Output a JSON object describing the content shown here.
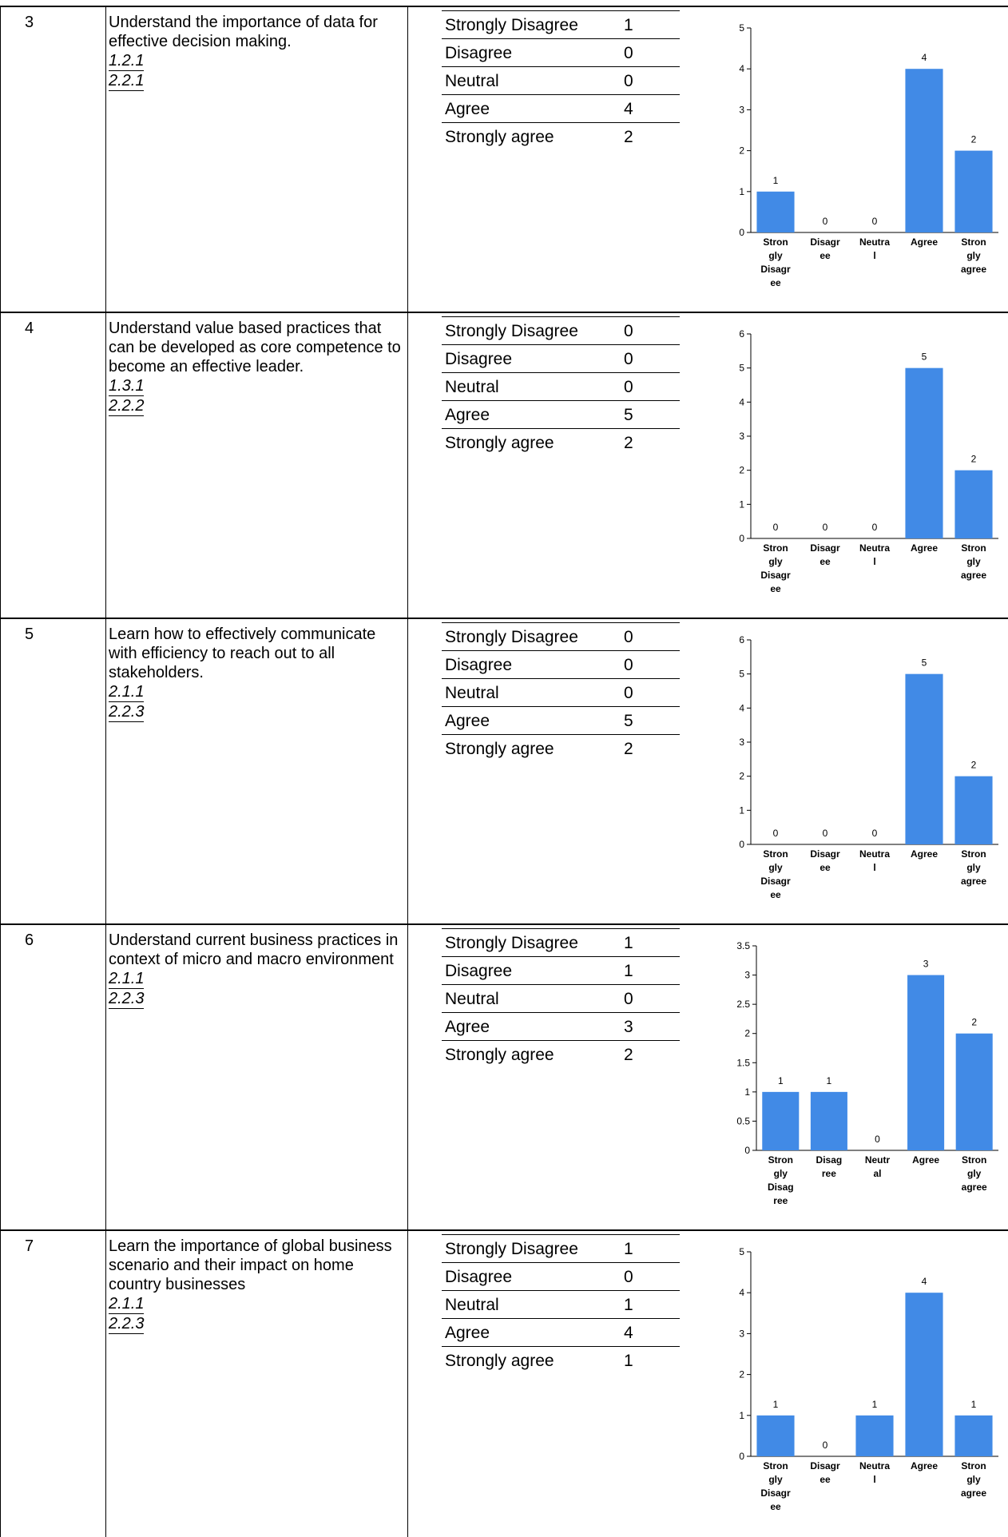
{
  "rows": [
    {
      "number": "3",
      "description": "Understand the importance of data for effective decision making.",
      "codes": [
        "1.2.1",
        "2.2.1"
      ],
      "responses": [
        {
          "label": "Strongly Disagree",
          "count": "1"
        },
        {
          "label": "Disagree",
          "count": "0"
        },
        {
          "label": "Neutral",
          "count": "0"
        },
        {
          "label": "Agree",
          "count": "4"
        },
        {
          "label": "Strongly agree",
          "count": "2"
        }
      ]
    },
    {
      "number": "4",
      "description": "Understand value based practices that can be developed as core competence to become an effective leader.",
      "codes": [
        "1.3.1",
        "2.2.2"
      ],
      "responses": [
        {
          "label": "Strongly Disagree",
          "count": "0"
        },
        {
          "label": "Disagree",
          "count": "0"
        },
        {
          "label": "Neutral",
          "count": "0"
        },
        {
          "label": "Agree",
          "count": "5"
        },
        {
          "label": "Strongly agree",
          "count": "2"
        }
      ]
    },
    {
      "number": "5",
      "description": "Learn how to effectively communicate with efficiency to reach out to all stakeholders.",
      "codes": [
        "2.1.1",
        "2.2.3"
      ],
      "responses": [
        {
          "label": "Strongly Disagree",
          "count": "0"
        },
        {
          "label": "Disagree",
          "count": "0"
        },
        {
          "label": "Neutral",
          "count": "0"
        },
        {
          "label": "Agree",
          "count": "5"
        },
        {
          "label": "Strongly agree",
          "count": "2"
        }
      ]
    },
    {
      "number": "6",
      "description": "Understand current business practices in context of micro and macro environment",
      "codes": [
        "2.1.1",
        "2.2.3"
      ],
      "responses": [
        {
          "label": "Strongly Disagree",
          "count": "1"
        },
        {
          "label": "Disagree",
          "count": "1"
        },
        {
          "label": "Neutral",
          "count": "0"
        },
        {
          "label": "Agree",
          "count": "3"
        },
        {
          "label": "Strongly agree",
          "count": "2"
        }
      ]
    },
    {
      "number": "7",
      "description": "Learn the importance of global business scenario and their impact on home country businesses",
      "codes": [
        "2.1.1",
        "2.2.3"
      ],
      "responses": [
        {
          "label": "Strongly Disagree",
          "count": "1"
        },
        {
          "label": "Disagree",
          "count": "0"
        },
        {
          "label": "Neutral",
          "count": "1"
        },
        {
          "label": "Agree",
          "count": "4"
        },
        {
          "label": "Strongly agree",
          "count": "1"
        }
      ]
    }
  ],
  "chart_data": [
    {
      "type": "bar",
      "categories": [
        "Strongly Disagree",
        "Disagree",
        "Neutral",
        "Agree",
        "Strongly agree"
      ],
      "category_tick_lines": [
        [
          "Stron",
          "gly",
          "Disagr",
          "ee"
        ],
        [
          "Disagr",
          "ee"
        ],
        [
          "Neutra",
          "l"
        ],
        [
          "Agree"
        ],
        [
          "Stron",
          "gly",
          "agree"
        ]
      ],
      "values": [
        1,
        0,
        0,
        4,
        2
      ],
      "ylim": [
        0,
        5
      ],
      "yticks": [
        0,
        1,
        2,
        3,
        4,
        5
      ],
      "ytick_labels": [
        "0",
        "1",
        "2",
        "3",
        "4",
        "5"
      ],
      "data_labels": true,
      "grid": false,
      "legend": false,
      "bar_color": "#418ae6"
    },
    {
      "type": "bar",
      "categories": [
        "Strongly Disagree",
        "Disagree",
        "Neutral",
        "Agree",
        "Strongly agree"
      ],
      "category_tick_lines": [
        [
          "Stron",
          "gly",
          "Disagr",
          "ee"
        ],
        [
          "Disagr",
          "ee"
        ],
        [
          "Neutra",
          "l"
        ],
        [
          "Agree"
        ],
        [
          "Stron",
          "gly",
          "agree"
        ]
      ],
      "values": [
        0,
        0,
        0,
        5,
        2
      ],
      "ylim": [
        0,
        6
      ],
      "yticks": [
        0,
        1,
        2,
        3,
        4,
        5,
        6
      ],
      "ytick_labels": [
        "0",
        "1",
        "2",
        "3",
        "4",
        "5",
        "6"
      ],
      "data_labels": true,
      "grid": false,
      "legend": false,
      "bar_color": "#418ae6"
    },
    {
      "type": "bar",
      "categories": [
        "Strongly Disagree",
        "Disagree",
        "Neutral",
        "Agree",
        "Strongly agree"
      ],
      "category_tick_lines": [
        [
          "Stron",
          "gly",
          "Disagr",
          "ee"
        ],
        [
          "Disagr",
          "ee"
        ],
        [
          "Neutra",
          "l"
        ],
        [
          "Agree"
        ],
        [
          "Stron",
          "gly",
          "agree"
        ]
      ],
      "values": [
        0,
        0,
        0,
        5,
        2
      ],
      "ylim": [
        0,
        6
      ],
      "yticks": [
        0,
        1,
        2,
        3,
        4,
        5,
        6
      ],
      "ytick_labels": [
        "0",
        "1",
        "2",
        "3",
        "4",
        "5",
        "6"
      ],
      "data_labels": true,
      "grid": false,
      "legend": false,
      "bar_color": "#418ae6"
    },
    {
      "type": "bar",
      "categories": [
        "Strongly Disagree",
        "Disagree",
        "Neutral",
        "Agree",
        "Strongly agree"
      ],
      "category_tick_lines": [
        [
          "Stron",
          "gly",
          "Disag",
          "ree"
        ],
        [
          "Disag",
          "ree"
        ],
        [
          "Neutr",
          "al"
        ],
        [
          "Agree"
        ],
        [
          "Stron",
          "gly",
          "agree"
        ]
      ],
      "values": [
        1,
        1,
        0,
        3,
        2
      ],
      "ylim": [
        0,
        3.5
      ],
      "yticks": [
        0,
        0.5,
        1,
        1.5,
        2,
        2.5,
        3,
        3.5
      ],
      "ytick_labels": [
        "0",
        "0.5",
        "1",
        "1.5",
        "2",
        "2.5",
        "3",
        "3.5"
      ],
      "data_labels": true,
      "grid": false,
      "legend": false,
      "bar_color": "#418ae6"
    },
    {
      "type": "bar",
      "categories": [
        "Strongly Disagree",
        "Disagree",
        "Neutral",
        "Agree",
        "Strongly agree"
      ],
      "category_tick_lines": [
        [
          "Stron",
          "gly",
          "Disagr",
          "ee"
        ],
        [
          "Disagr",
          "ee"
        ],
        [
          "Neutra",
          "l"
        ],
        [
          "Agree"
        ],
        [
          "Stron",
          "gly",
          "agree"
        ]
      ],
      "values": [
        1,
        0,
        1,
        4,
        1
      ],
      "ylim": [
        0,
        5
      ],
      "yticks": [
        0,
        1,
        2,
        3,
        4,
        5
      ],
      "ytick_labels": [
        "0",
        "1",
        "2",
        "3",
        "4",
        "5"
      ],
      "data_labels": true,
      "grid": false,
      "legend": false,
      "bar_color": "#418ae6"
    }
  ]
}
